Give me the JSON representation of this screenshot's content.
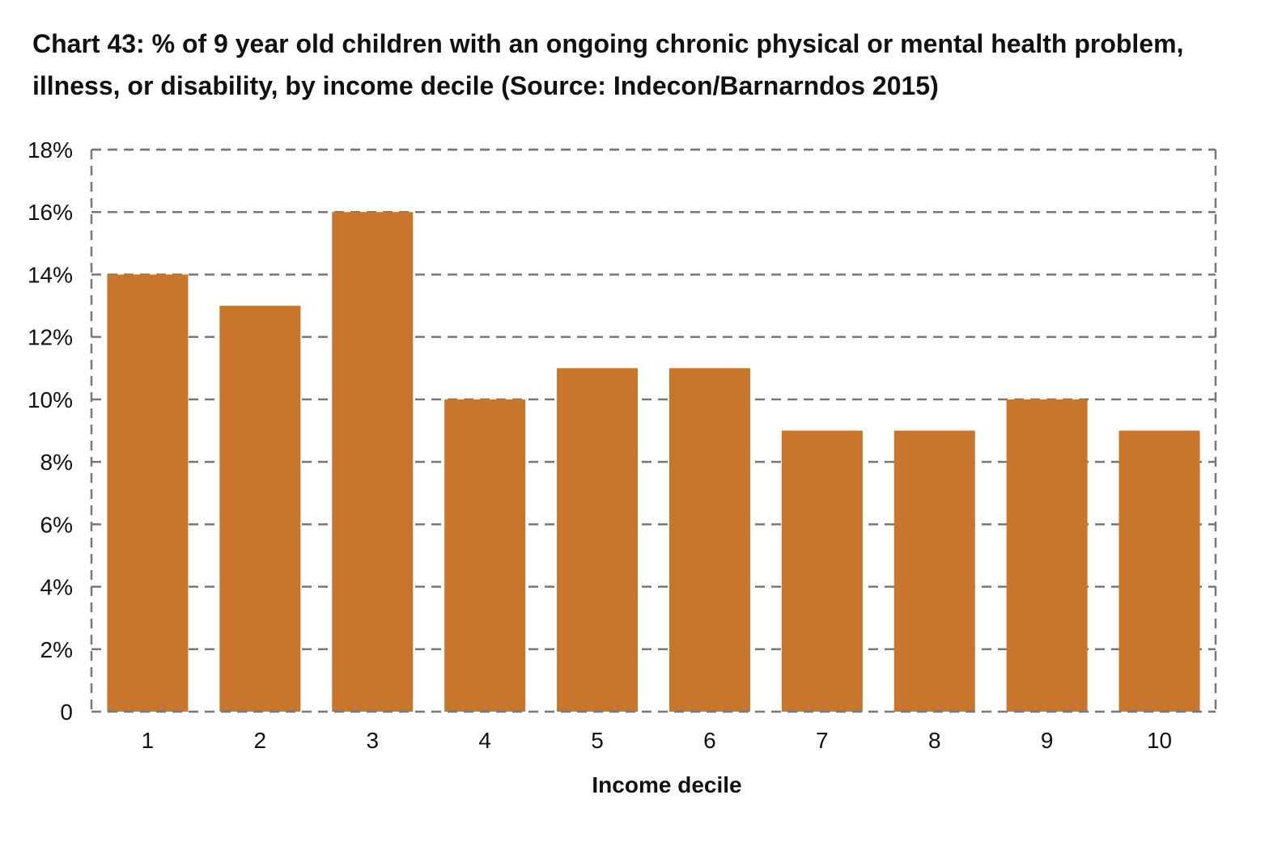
{
  "chart_data": {
    "type": "bar",
    "title": "Chart 43: % of 9 year old children with an ongoing chronic physical or mental health problem, illness, or disability, by income decile (Source: Indecon/Barnarndos 2015)",
    "xlabel": "Income decile",
    "ylabel": "",
    "categories": [
      "1",
      "2",
      "3",
      "4",
      "5",
      "6",
      "7",
      "8",
      "9",
      "10"
    ],
    "values": [
      14,
      13,
      16,
      10,
      11,
      11,
      9,
      9,
      10,
      9
    ],
    "ylim": [
      0,
      18
    ],
    "yticks": [
      0,
      2,
      4,
      6,
      8,
      10,
      12,
      14,
      16,
      18
    ],
    "ytick_labels": [
      "0",
      "2%",
      "4%",
      "6%",
      "8%",
      "10%",
      "12%",
      "14%",
      "16%",
      "18%"
    ],
    "grid": true,
    "bar_color": "#C8762C",
    "grid_color": "#777777"
  }
}
